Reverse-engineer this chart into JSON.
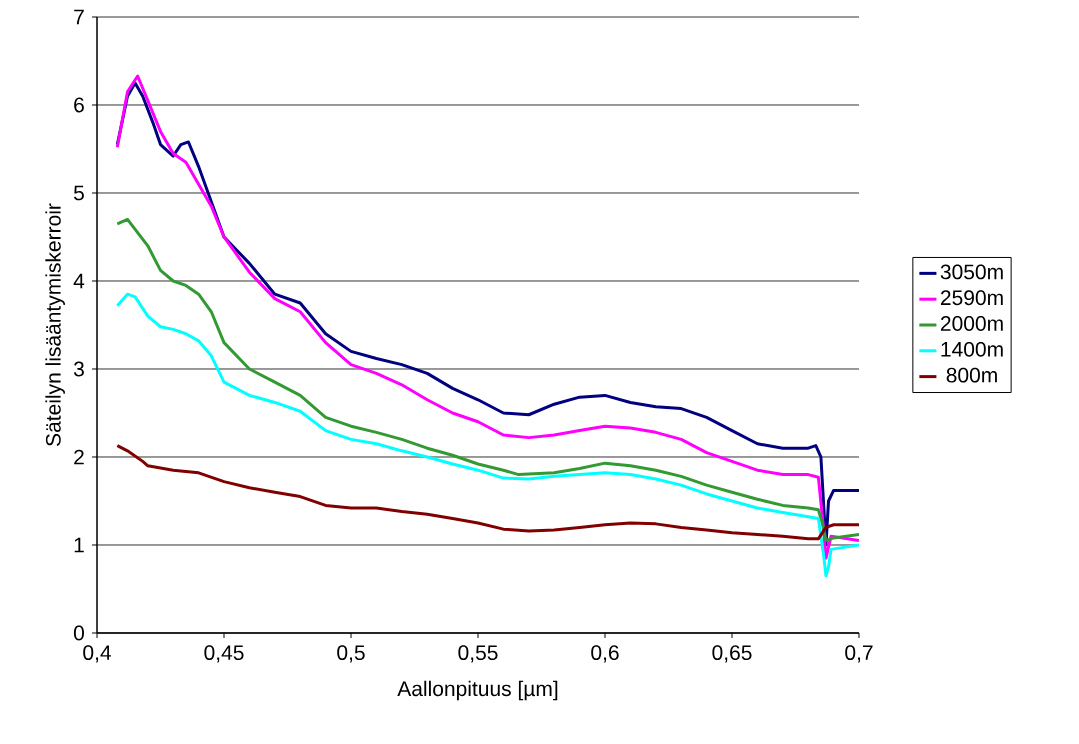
{
  "chart_data": {
    "type": "line",
    "xlabel": "Aallonpituus [µm]",
    "ylabel": "Säteilyn lisääntymiskerroir",
    "xlim": [
      0.4,
      0.7
    ],
    "ylim": [
      0,
      7
    ],
    "xticks": [
      {
        "value": 0.4,
        "label": "0,4"
      },
      {
        "value": 0.45,
        "label": "0,45"
      },
      {
        "value": 0.5,
        "label": "0,5"
      },
      {
        "value": 0.55,
        "label": "0,55"
      },
      {
        "value": 0.6,
        "label": "0,6"
      },
      {
        "value": 0.65,
        "label": "0,65"
      },
      {
        "value": 0.7,
        "label": "0,7"
      }
    ],
    "yticks": [
      0,
      1,
      2,
      3,
      4,
      5,
      6,
      7
    ],
    "grid": "y",
    "legend": "right",
    "marker": "none",
    "line_style": "solid",
    "series": [
      {
        "name": "3050m",
        "color": "#000080",
        "x": [
          0.408,
          0.412,
          0.415,
          0.418,
          0.422,
          0.425,
          0.43,
          0.433,
          0.436,
          0.44,
          0.445,
          0.45,
          0.46,
          0.47,
          0.48,
          0.49,
          0.5,
          0.51,
          0.52,
          0.53,
          0.54,
          0.55,
          0.56,
          0.57,
          0.58,
          0.59,
          0.6,
          0.61,
          0.62,
          0.63,
          0.64,
          0.65,
          0.66,
          0.67,
          0.68,
          0.683,
          0.685,
          0.687,
          0.688,
          0.69,
          0.7
        ],
        "values": [
          5.55,
          6.1,
          6.25,
          6.1,
          5.8,
          5.55,
          5.42,
          5.55,
          5.58,
          5.3,
          4.9,
          4.5,
          4.2,
          3.85,
          3.75,
          3.4,
          3.2,
          3.12,
          3.05,
          2.95,
          2.78,
          2.65,
          2.5,
          2.48,
          2.6,
          2.68,
          2.7,
          2.62,
          2.57,
          2.55,
          2.45,
          2.3,
          2.15,
          2.1,
          2.1,
          2.13,
          2.0,
          1.0,
          1.5,
          1.62,
          1.62
        ]
      },
      {
        "name": "2590m",
        "color": "#ff00ff",
        "x": [
          0.408,
          0.412,
          0.416,
          0.42,
          0.425,
          0.43,
          0.435,
          0.44,
          0.445,
          0.45,
          0.46,
          0.47,
          0.48,
          0.49,
          0.5,
          0.51,
          0.52,
          0.53,
          0.54,
          0.55,
          0.56,
          0.57,
          0.58,
          0.59,
          0.6,
          0.61,
          0.62,
          0.63,
          0.64,
          0.65,
          0.66,
          0.67,
          0.68,
          0.684,
          0.686,
          0.687,
          0.689,
          0.7
        ],
        "values": [
          5.52,
          6.15,
          6.33,
          6.05,
          5.7,
          5.45,
          5.35,
          5.1,
          4.85,
          4.5,
          4.1,
          3.8,
          3.65,
          3.3,
          3.05,
          2.95,
          2.82,
          2.65,
          2.5,
          2.4,
          2.25,
          2.22,
          2.25,
          2.3,
          2.35,
          2.33,
          2.28,
          2.2,
          2.05,
          1.95,
          1.85,
          1.8,
          1.8,
          1.77,
          1.2,
          0.85,
          1.1,
          1.05
        ]
      },
      {
        "name": "2000m",
        "color": "#339933",
        "x": [
          0.408,
          0.412,
          0.42,
          0.425,
          0.43,
          0.435,
          0.44,
          0.445,
          0.45,
          0.46,
          0.47,
          0.48,
          0.49,
          0.5,
          0.51,
          0.52,
          0.53,
          0.54,
          0.55,
          0.56,
          0.566,
          0.58,
          0.59,
          0.6,
          0.61,
          0.62,
          0.63,
          0.64,
          0.65,
          0.66,
          0.67,
          0.68,
          0.684,
          0.686,
          0.687,
          0.69,
          0.7
        ],
        "values": [
          4.65,
          4.7,
          4.4,
          4.12,
          4.0,
          3.95,
          3.85,
          3.65,
          3.3,
          3.0,
          2.85,
          2.7,
          2.45,
          2.35,
          2.28,
          2.2,
          2.1,
          2.02,
          1.92,
          1.85,
          1.8,
          1.82,
          1.87,
          1.93,
          1.9,
          1.85,
          1.78,
          1.68,
          1.6,
          1.52,
          1.45,
          1.42,
          1.4,
          1.2,
          1.05,
          1.08,
          1.12
        ]
      },
      {
        "name": "1400m",
        "color": "#00ffff",
        "x": [
          0.408,
          0.412,
          0.415,
          0.42,
          0.425,
          0.43,
          0.435,
          0.44,
          0.445,
          0.45,
          0.46,
          0.47,
          0.48,
          0.49,
          0.5,
          0.51,
          0.52,
          0.53,
          0.54,
          0.55,
          0.56,
          0.57,
          0.58,
          0.59,
          0.6,
          0.61,
          0.62,
          0.63,
          0.64,
          0.65,
          0.66,
          0.67,
          0.68,
          0.684,
          0.686,
          0.687,
          0.688,
          0.689,
          0.7
        ],
        "values": [
          3.72,
          3.85,
          3.82,
          3.6,
          3.48,
          3.45,
          3.4,
          3.32,
          3.15,
          2.85,
          2.7,
          2.62,
          2.52,
          2.3,
          2.2,
          2.15,
          2.07,
          2.0,
          1.92,
          1.85,
          1.76,
          1.75,
          1.78,
          1.8,
          1.82,
          1.8,
          1.75,
          1.68,
          1.58,
          1.5,
          1.42,
          1.37,
          1.32,
          1.3,
          0.9,
          0.65,
          0.75,
          0.95,
          1.0
        ]
      },
      {
        "name": " 800m",
        "color": "#800000",
        "x": [
          0.408,
          0.412,
          0.418,
          0.42,
          0.43,
          0.44,
          0.45,
          0.46,
          0.47,
          0.48,
          0.49,
          0.5,
          0.51,
          0.52,
          0.53,
          0.54,
          0.55,
          0.56,
          0.57,
          0.58,
          0.59,
          0.6,
          0.61,
          0.62,
          0.63,
          0.64,
          0.65,
          0.66,
          0.67,
          0.68,
          0.684,
          0.687,
          0.69,
          0.7
        ],
        "values": [
          2.13,
          2.07,
          1.95,
          1.9,
          1.85,
          1.82,
          1.72,
          1.65,
          1.6,
          1.55,
          1.45,
          1.42,
          1.42,
          1.38,
          1.35,
          1.3,
          1.25,
          1.18,
          1.16,
          1.17,
          1.2,
          1.23,
          1.25,
          1.24,
          1.2,
          1.17,
          1.14,
          1.12,
          1.1,
          1.07,
          1.07,
          1.2,
          1.23,
          1.23
        ]
      }
    ]
  }
}
